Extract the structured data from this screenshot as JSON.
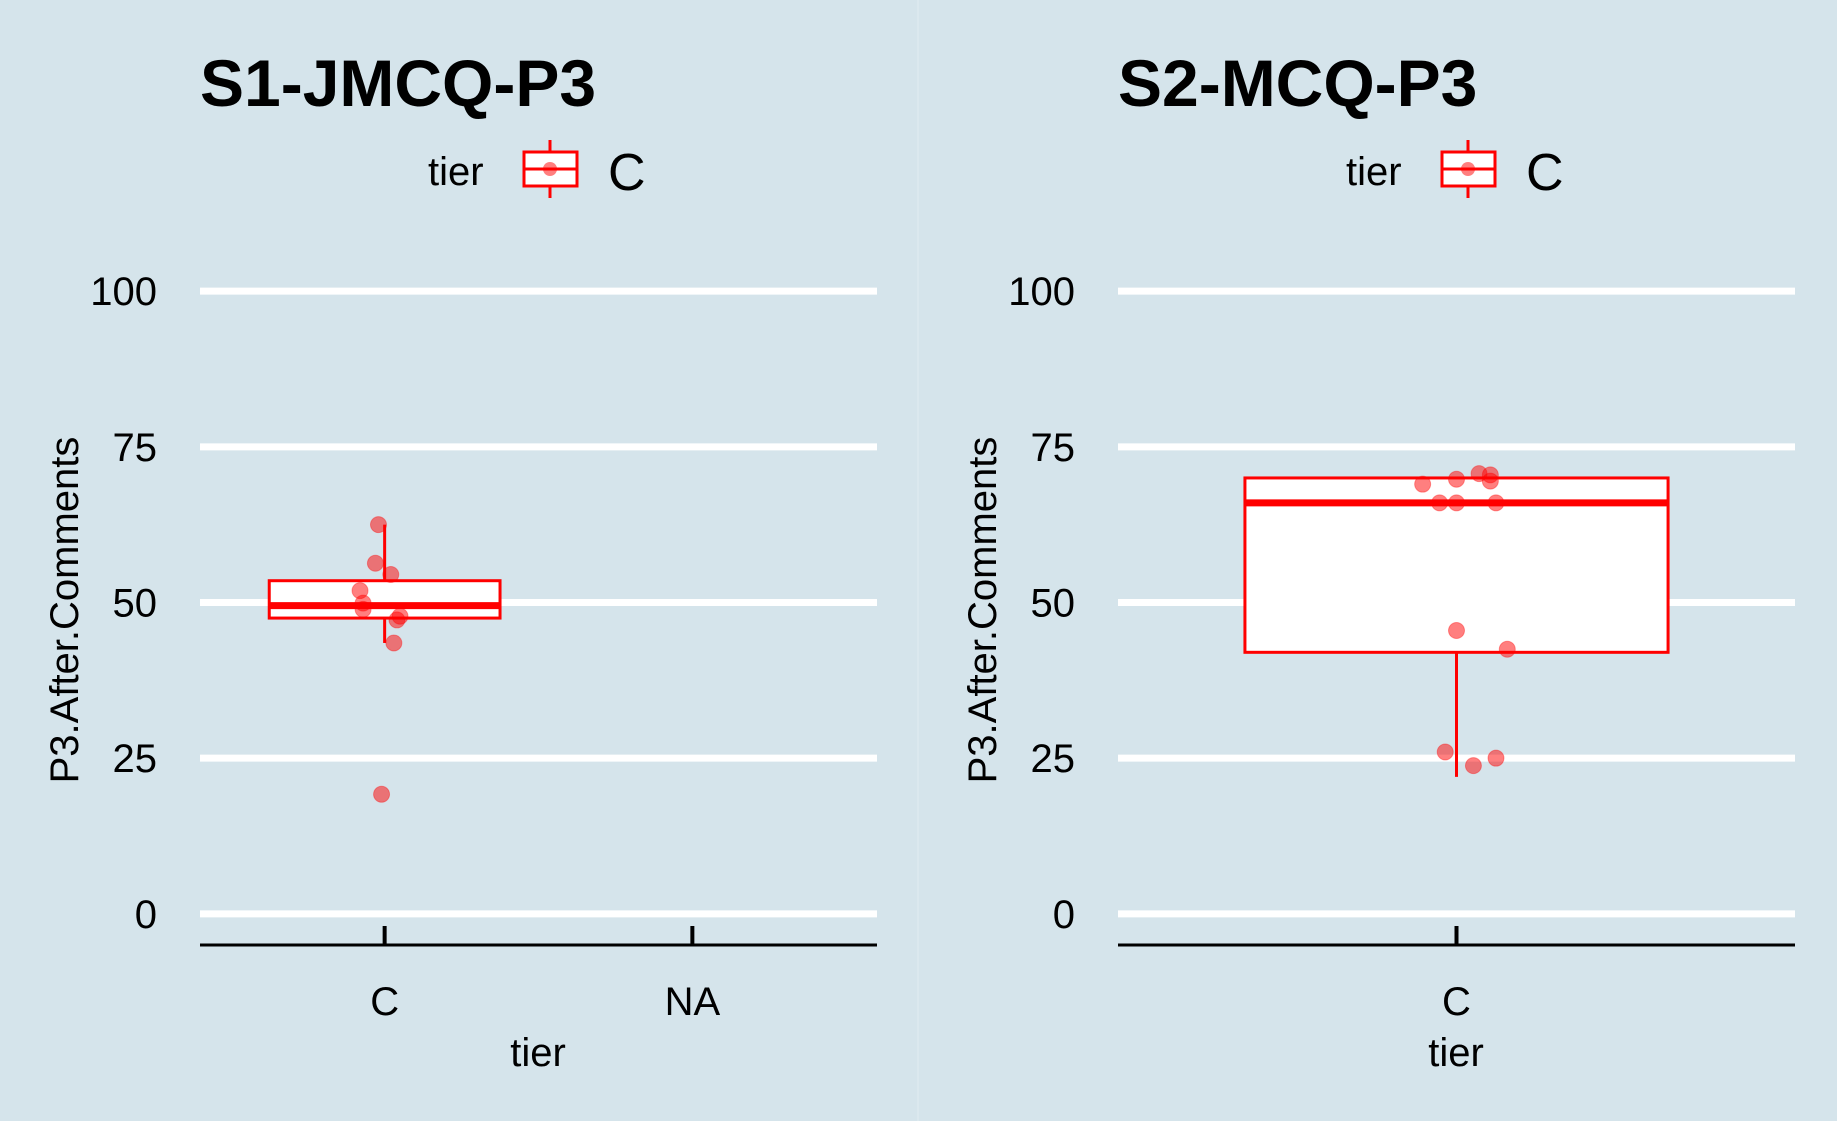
{
  "colors": {
    "background": "#d5e4eb",
    "grid": "#ffffff",
    "series": "#ff0000",
    "axis": "#000000"
  },
  "chart_data": [
    {
      "type": "boxplot",
      "title": "S1-JMCQ-P3",
      "xlabel": "tier",
      "ylabel": "P3.After.Comments",
      "categories": [
        "C",
        "NA"
      ],
      "ylim": [
        -5,
        105
      ],
      "yticks": [
        0,
        25,
        50,
        75,
        100
      ],
      "grid": true,
      "legend": {
        "title": "tier",
        "entries": [
          "C"
        ],
        "placement": "top"
      },
      "boxes": [
        {
          "category": "C",
          "whisker_low": 43.5,
          "q1": 47.5,
          "median": 49.5,
          "q3": 53.5,
          "whisker_high": 62.5
        }
      ],
      "points": [
        {
          "category": "C",
          "jitter": -0.02,
          "y": 62.5
        },
        {
          "category": "C",
          "jitter": -0.03,
          "y": 56.3
        },
        {
          "category": "C",
          "jitter": 0.02,
          "y": 54.5
        },
        {
          "category": "C",
          "jitter": -0.08,
          "y": 51.9
        },
        {
          "category": "C",
          "jitter": -0.07,
          "y": 49.9
        },
        {
          "category": "C",
          "jitter": -0.07,
          "y": 48.9
        },
        {
          "category": "C",
          "jitter": 0.05,
          "y": 47.8
        },
        {
          "category": "C",
          "jitter": 0.04,
          "y": 47.2
        },
        {
          "category": "C",
          "jitter": 0.03,
          "y": 43.5
        },
        {
          "category": "C",
          "jitter": -0.01,
          "y": 19.2
        }
      ]
    },
    {
      "type": "boxplot",
      "title": "S2-MCQ-P3",
      "xlabel": "tier",
      "ylabel": "P3.After.Comments",
      "categories": [
        "C"
      ],
      "ylim": [
        -5,
        105
      ],
      "yticks": [
        0,
        25,
        50,
        75,
        100
      ],
      "grid": true,
      "legend": {
        "title": "tier",
        "entries": [
          "C"
        ],
        "placement": "top"
      },
      "boxes": [
        {
          "category": "C",
          "whisker_low": 22.0,
          "q1": 42.0,
          "median": 66.0,
          "q3": 70.0,
          "whisker_high": 70.0
        }
      ],
      "points": [
        {
          "category": "C",
          "jitter": 0.04,
          "y": 70.7
        },
        {
          "category": "C",
          "jitter": 0.06,
          "y": 70.5
        },
        {
          "category": "C",
          "jitter": 0.0,
          "y": 69.8
        },
        {
          "category": "C",
          "jitter": 0.06,
          "y": 69.5
        },
        {
          "category": "C",
          "jitter": -0.06,
          "y": 69.0
        },
        {
          "category": "C",
          "jitter": -0.03,
          "y": 66.0
        },
        {
          "category": "C",
          "jitter": -0.0,
          "y": 66.0
        },
        {
          "category": "C",
          "jitter": 0.07,
          "y": 66.0
        },
        {
          "category": "C",
          "jitter": 0.0,
          "y": 45.5
        },
        {
          "category": "C",
          "jitter": 0.09,
          "y": 42.5
        },
        {
          "category": "C",
          "jitter": -0.02,
          "y": 26.0
        },
        {
          "category": "C",
          "jitter": 0.07,
          "y": 25.0
        },
        {
          "category": "C",
          "jitter": 0.03,
          "y": 23.8
        }
      ]
    }
  ]
}
